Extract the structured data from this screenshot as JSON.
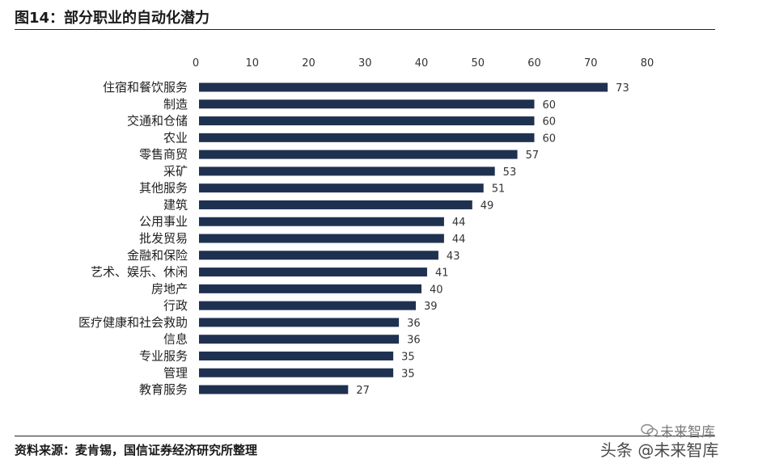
{
  "figure_title": "图14：部分职业的自动化潜力",
  "source_note": "资料来源：麦肯锡，国信证券经济研究所整理",
  "watermark": "头条 @未来智库",
  "watermark_logo_text": "未来智库",
  "colors": {
    "bar": "#1f3150",
    "axis_text": "#333333",
    "label_text": "#222222",
    "rule": "#222222"
  },
  "chart_data": {
    "type": "bar",
    "orientation": "horizontal",
    "title": "",
    "xlabel": "",
    "ylabel": "",
    "xlim": [
      0,
      80
    ],
    "x_ticks": [
      0,
      10,
      20,
      30,
      40,
      50,
      60,
      70,
      80
    ],
    "x_axis_position": "top",
    "grid": false,
    "data_labels": true,
    "categories": [
      "住宿和餐饮服务",
      "制造",
      "交通和仓储",
      "农业",
      "零售商贸",
      "采矿",
      "其他服务",
      "建筑",
      "公用事业",
      "批发贸易",
      "金融和保险",
      "艺术、娱乐、休闲",
      "房地产",
      "行政",
      "医疗健康和社会救助",
      "信息",
      "专业服务",
      "管理",
      "教育服务"
    ],
    "values": [
      73,
      60,
      60,
      60,
      57,
      53,
      51,
      49,
      44,
      44,
      43,
      41,
      40,
      39,
      36,
      36,
      35,
      35,
      27
    ]
  }
}
